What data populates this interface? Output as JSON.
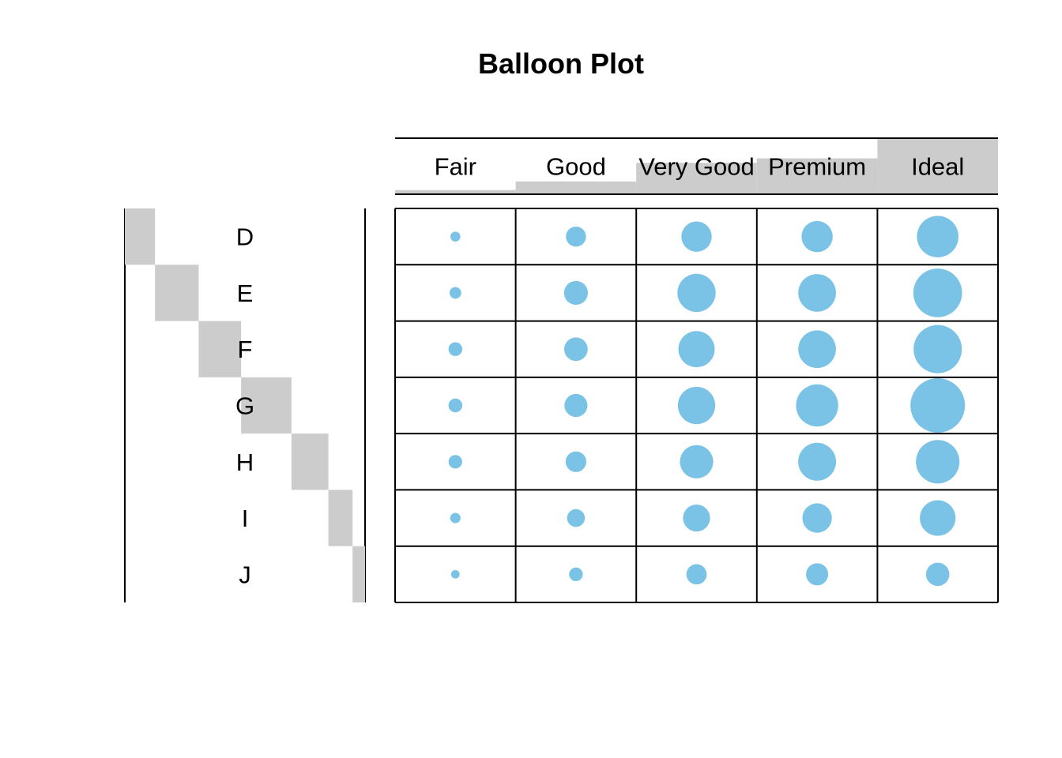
{
  "chart_data": {
    "type": "balloon",
    "title": "Balloon Plot",
    "columns": [
      "Fair",
      "Good",
      "Very Good",
      "Premium",
      "Ideal"
    ],
    "rows": [
      "D",
      "E",
      "F",
      "G",
      "H",
      "I",
      "J"
    ],
    "values": [
      [
        163,
        662,
        1513,
        1603,
        2834
      ],
      [
        224,
        933,
        2400,
        2337,
        3903
      ],
      [
        312,
        909,
        2164,
        2331,
        3826
      ],
      [
        314,
        871,
        2299,
        2924,
        4884
      ],
      [
        303,
        702,
        1824,
        2360,
        3115
      ],
      [
        175,
        522,
        1204,
        1428,
        2093
      ],
      [
        119,
        307,
        678,
        808,
        896
      ]
    ],
    "column_totals": [
      1610,
      4906,
      12082,
      13791,
      21551
    ],
    "row_totals": [
      6775,
      9797,
      9542,
      11292,
      8304,
      5422,
      2808
    ],
    "colors": {
      "balloon": "#7ac3e6",
      "margin_bar": "#cccccc",
      "grid": "#000000"
    }
  }
}
